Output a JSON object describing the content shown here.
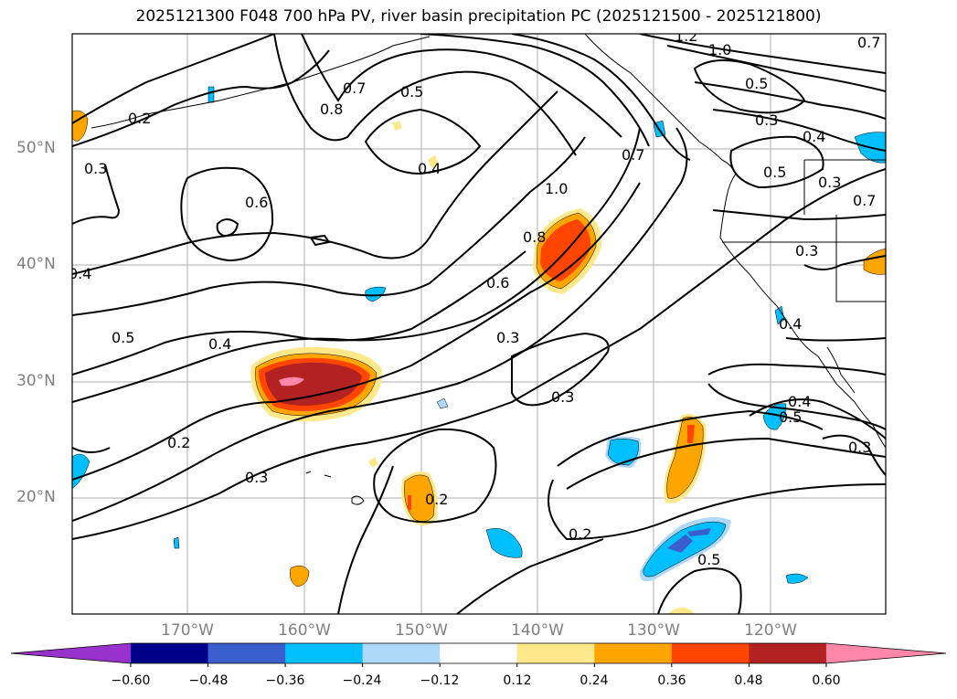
{
  "title": "2025121300 F048 700 hPa PV, river basin precipitation PC (2025121500 - 2025121800)",
  "lat_labels": [
    "50°N",
    "40°N",
    "30°N",
    "20°N"
  ],
  "lon_labels": [
    "170°W",
    "160°W",
    "150°W",
    "140°W",
    "130°W",
    "120°W"
  ],
  "colorbar": {
    "ticks": [
      "−0.60",
      "−0.48",
      "−0.36",
      "−0.24",
      "−0.12",
      "0.12",
      "0.24",
      "0.36",
      "0.48",
      "0.60"
    ],
    "colors": [
      "#9932cc",
      "#00008b",
      "#3a5fcd",
      "#00bfff",
      "#add8f7",
      "#ffffff",
      "#ffe88a",
      "#ffa500",
      "#ff4500",
      "#b22222",
      "#ff88aa"
    ]
  },
  "contour_labels": [
    "1.2",
    "1.0",
    "0.7",
    "0.5",
    "0.3",
    "0.4",
    "0.5",
    "0.3",
    "0.2",
    "0.8",
    "0.7",
    "0.5",
    "0.4",
    "0.6",
    "1.0",
    "0.7",
    "0.8",
    "0.6",
    "0.4",
    "0.4",
    "0.5",
    "0.3",
    "0.3",
    "0.3",
    "0.2",
    "0.3",
    "0.2",
    "0.2",
    "0.5",
    "0.4",
    "0.5",
    "0.3",
    "0.4",
    "0.3",
    "0.7"
  ]
}
